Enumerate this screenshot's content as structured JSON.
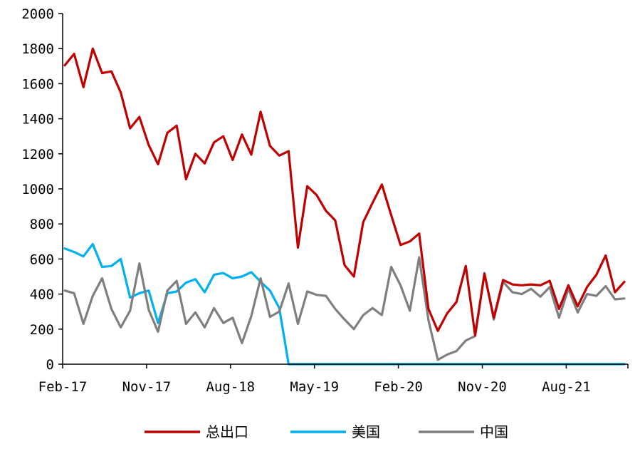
{
  "chart_data": {
    "type": "line",
    "title": "",
    "xlabel": "",
    "ylabel": "",
    "ylim": [
      0,
      2000
    ],
    "yticks": [
      0,
      200,
      400,
      600,
      800,
      1000,
      1200,
      1400,
      1600,
      1800,
      2000
    ],
    "xtick_labels": [
      "Feb-17",
      "Nov-17",
      "Aug-18",
      "May-19",
      "Feb-20",
      "Nov-20",
      "Aug-21"
    ],
    "xtick_positions": [
      0,
      9,
      18,
      27,
      36,
      45,
      54
    ],
    "x_count": 61,
    "grid": false,
    "legend_position": "bottom",
    "series": [
      {
        "name": "总出口",
        "color": "#c00000",
        "values": [
          1705,
          1770,
          1580,
          1800,
          1660,
          1670,
          1550,
          1345,
          1410,
          1250,
          1140,
          1320,
          1360,
          1055,
          1200,
          1145,
          1265,
          1300,
          1165,
          1310,
          1195,
          1440,
          1245,
          1190,
          1215,
          665,
          1015,
          965,
          875,
          820,
          565,
          500,
          810,
          920,
          1025,
          850,
          680,
          700,
          745,
          315,
          190,
          290,
          355,
          560,
          165,
          515,
          265,
          480,
          455,
          450,
          455,
          450,
          475,
          315,
          450,
          330,
          440,
          510,
          620,
          410,
          470
        ]
      },
      {
        "name": "美国",
        "color": "#00b0f0",
        "values": [
          660,
          640,
          615,
          685,
          555,
          560,
          600,
          380,
          405,
          420,
          235,
          405,
          415,
          465,
          485,
          410,
          510,
          520,
          490,
          500,
          525,
          470,
          420,
          320,
          0,
          0,
          0,
          0,
          0,
          0,
          0,
          0,
          0,
          0,
          0,
          0,
          0,
          0,
          0,
          0,
          0,
          0,
          0,
          0,
          0,
          0,
          0,
          0,
          0,
          0,
          0,
          0,
          0,
          0,
          0,
          0,
          0,
          0,
          0,
          0,
          0
        ]
      },
      {
        "name": "中国",
        "color": "#7f7f7f",
        "values": [
          420,
          405,
          230,
          390,
          490,
          315,
          210,
          305,
          575,
          310,
          185,
          420,
          475,
          230,
          295,
          210,
          320,
          235,
          265,
          120,
          275,
          490,
          270,
          300,
          460,
          230,
          415,
          395,
          390,
          315,
          255,
          200,
          280,
          320,
          280,
          555,
          450,
          305,
          610,
          250,
          25,
          55,
          75,
          135,
          160,
          520,
          255,
          470,
          410,
          400,
          430,
          385,
          440,
          265,
          430,
          295,
          400,
          390,
          445,
          370,
          375
        ]
      }
    ]
  }
}
